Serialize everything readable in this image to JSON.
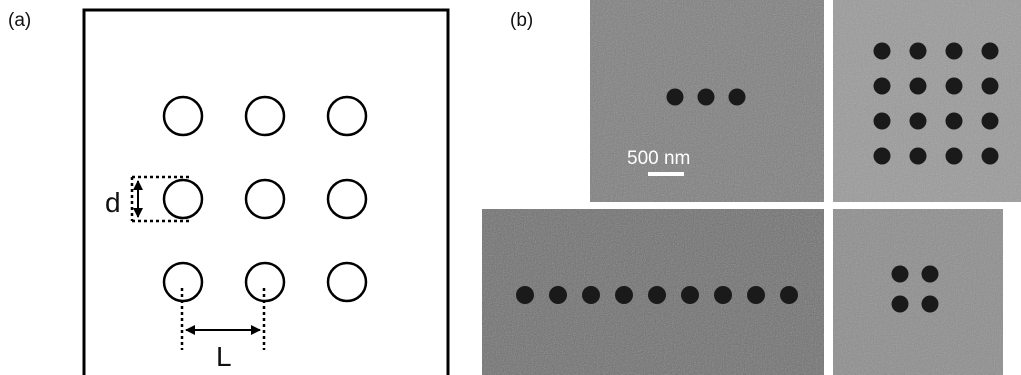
{
  "panel_a": {
    "label": "(a)",
    "grid_rows": 3,
    "grid_cols": 3,
    "diameter_label": "d",
    "spacing_label": "L"
  },
  "panel_b": {
    "label": "(b)",
    "scale_bar_label": "500 nm",
    "images": [
      {
        "name": "three-hole-chain",
        "rows": 1,
        "cols": 3
      },
      {
        "name": "four-by-four-array",
        "rows": 4,
        "cols": 4
      },
      {
        "name": "nine-hole-chain",
        "rows": 1,
        "cols": 9
      },
      {
        "name": "two-by-two-array",
        "rows": 2,
        "cols": 2
      }
    ]
  },
  "colors": {
    "schematic_stroke": "#000000",
    "sem_background": "#7a7a7a",
    "sem_hole": "#1a1a1a",
    "scale_bar": "#ffffff"
  }
}
